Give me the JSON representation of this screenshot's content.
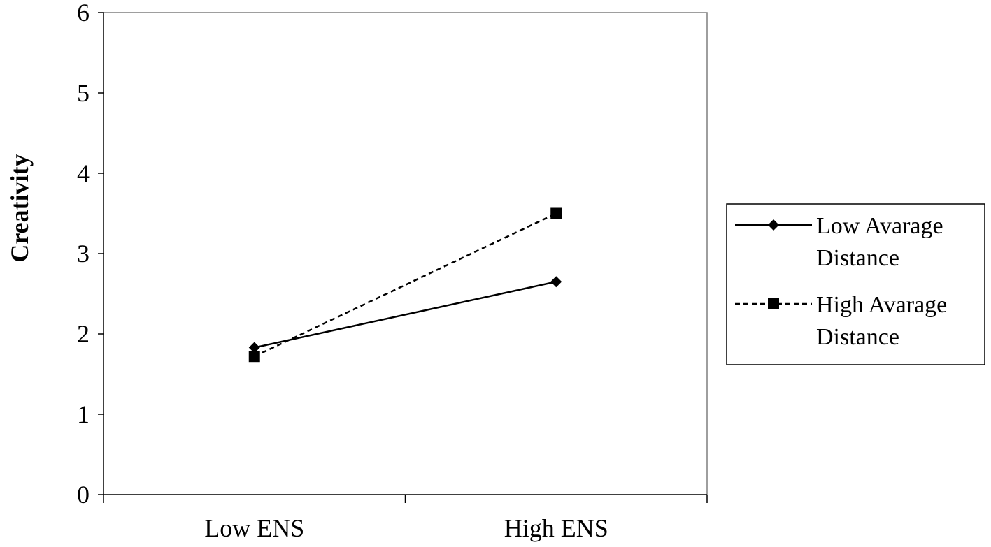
{
  "chart_data": {
    "type": "line",
    "title": "",
    "xlabel": "",
    "ylabel": "Creativity",
    "categories": [
      "Low ENS",
      "High ENS"
    ],
    "ylim": [
      0,
      6
    ],
    "yticks": [
      "0",
      "1",
      "2",
      "3",
      "4",
      "5",
      "6"
    ],
    "grid": false,
    "legend_position": "right",
    "series": [
      {
        "name_lines": [
          "Low Avarage",
          "Distance"
        ],
        "values": [
          1.83,
          2.65
        ],
        "line_style": "solid",
        "marker": "diamond",
        "color": "#000000"
      },
      {
        "name_lines": [
          "High Avarage",
          "Distance"
        ],
        "values": [
          1.72,
          3.5
        ],
        "line_style": "dashed",
        "marker": "square",
        "color": "#000000"
      }
    ]
  }
}
